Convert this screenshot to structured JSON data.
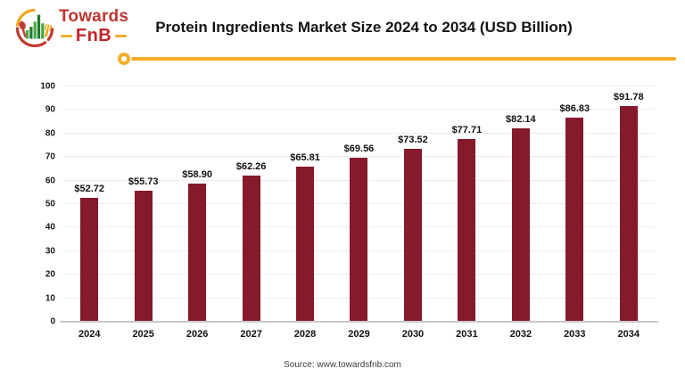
{
  "brand": {
    "name_line1": "Towards",
    "name_line2": "FnB",
    "icon": "fnb-emblem-icon"
  },
  "header": {
    "title": "Protein Ingredients Market Size 2024 to 2034 (USD Billion)"
  },
  "chart_data": {
    "type": "bar",
    "title": "Protein Ingredients Market Size 2024 to 2034 (USD Billion)",
    "categories": [
      "2024",
      "2025",
      "2026",
      "2027",
      "2028",
      "2029",
      "2030",
      "2031",
      "2032",
      "2033",
      "2034"
    ],
    "values": [
      52.72,
      55.73,
      58.9,
      62.26,
      65.81,
      69.56,
      73.52,
      77.71,
      82.14,
      86.83,
      91.78
    ],
    "value_label_prefix": "$",
    "xlabel": "",
    "ylabel": "",
    "ylim": [
      0,
      100
    ],
    "ytick_step": 10,
    "grid": true,
    "legend": "none",
    "bar_color": "#851A2B"
  },
  "footer": {
    "source": "Source: www.towardsfnb.com"
  },
  "colors": {
    "accent_yellow": "#F2AE2E",
    "bar_maroon": "#851A2B",
    "brand_red": "#BE352E",
    "fnb_red": "#C4232B",
    "gridline_gray": "#ECECEC",
    "baseline_gray": "#C9C9C9"
  }
}
